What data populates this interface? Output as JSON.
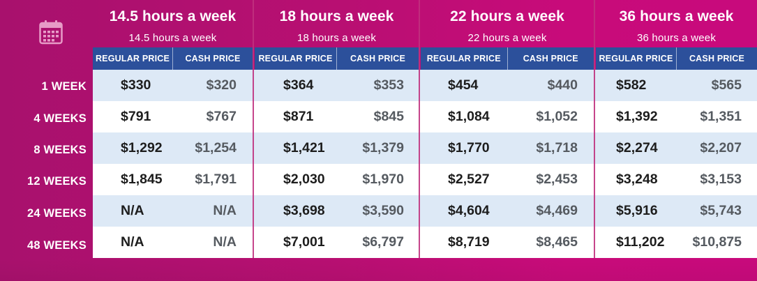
{
  "columns": [
    {
      "title": "14.5 hours a week",
      "subtitle": "14.5 hours a week",
      "regular_label": "REGULAR PRICE",
      "cash_label": "CASH PRICE"
    },
    {
      "title": "18 hours a week",
      "subtitle": "18 hours a week",
      "regular_label": "REGULAR PRICE",
      "cash_label": "CASH PRICE"
    },
    {
      "title": "22 hours a week",
      "subtitle": "22 hours a week",
      "regular_label": "REGULAR PRICE",
      "cash_label": "CASH PRICE"
    },
    {
      "title": "36 hours a week",
      "subtitle": "36 hours a week",
      "regular_label": "REGULAR PRICE",
      "cash_label": "CASH PRICE"
    }
  ],
  "rows": [
    {
      "label": "1 WEEK",
      "prices": [
        [
          "$330",
          "$320"
        ],
        [
          "$364",
          "$353"
        ],
        [
          "$454",
          "$440"
        ],
        [
          "$582",
          "$565"
        ]
      ]
    },
    {
      "label": "4 WEEKS",
      "prices": [
        [
          "$791",
          "$767"
        ],
        [
          "$871",
          "$845"
        ],
        [
          "$1,084",
          "$1,052"
        ],
        [
          "$1,392",
          "$1,351"
        ]
      ]
    },
    {
      "label": "8 WEEKS",
      "prices": [
        [
          "$1,292",
          "$1,254"
        ],
        [
          "$1,421",
          "$1,379"
        ],
        [
          "$1,770",
          "$1,718"
        ],
        [
          "$2,274",
          "$2,207"
        ]
      ]
    },
    {
      "label": "12 WEEKS",
      "prices": [
        [
          "$1,845",
          "$1,791"
        ],
        [
          "$2,030",
          "$1,970"
        ],
        [
          "$2,527",
          "$2,453"
        ],
        [
          "$3,248",
          "$3,153"
        ]
      ]
    },
    {
      "label": "24 WEEKS",
      "prices": [
        [
          "N/A",
          "N/A"
        ],
        [
          "$3,698",
          "$3,590"
        ],
        [
          "$4,604",
          "$4,469"
        ],
        [
          "$5,916",
          "$5,743"
        ]
      ]
    },
    {
      "label": "48 WEEKS",
      "prices": [
        [
          "N/A",
          "N/A"
        ],
        [
          "$7,001",
          "$6,797"
        ],
        [
          "$8,719",
          "$8,465"
        ],
        [
          "$11,202",
          "$10,875"
        ]
      ]
    }
  ],
  "icons": {
    "calendar": "calendar-icon"
  },
  "colors": {
    "magenta": "#b80f72",
    "header_blue": "#2c509b",
    "row_alt": "#dde9f6"
  }
}
